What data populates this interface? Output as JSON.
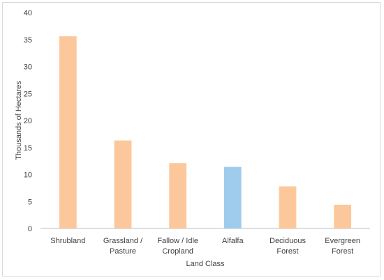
{
  "chart_data": {
    "type": "bar",
    "title": "",
    "xlabel": "Land Class",
    "ylabel": "Thousands of Hectares",
    "ylim": [
      0,
      40
    ],
    "yticks": [
      0,
      5,
      10,
      15,
      20,
      25,
      30,
      35,
      40
    ],
    "grid": false,
    "categories": [
      [
        "Shrubland"
      ],
      [
        "Grassland /",
        "Pasture"
      ],
      [
        "Fallow / Idle",
        "Cropland"
      ],
      [
        "Alfalfa"
      ],
      [
        "Deciduous",
        "Forest"
      ],
      [
        "Evergreen",
        "Forest"
      ]
    ],
    "values": [
      35.6,
      16.3,
      12.1,
      11.4,
      7.8,
      4.4
    ],
    "colors": [
      "#fcc89b",
      "#fcc89b",
      "#fcc89b",
      "#9fcbec",
      "#fcc89b",
      "#fcc89b"
    ]
  }
}
